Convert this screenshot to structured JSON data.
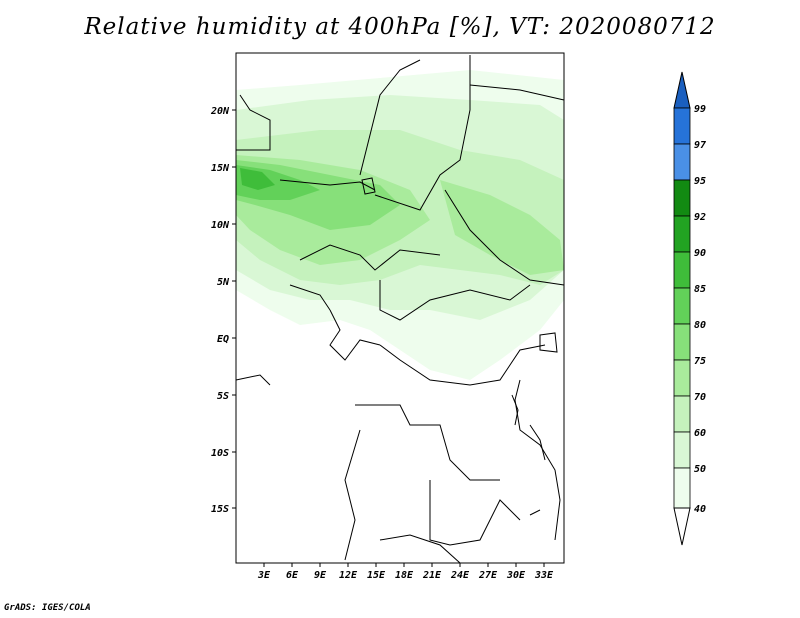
{
  "title": "Relative humidity at 400hPa [%], VT: 2020080712",
  "credit": "GrADS: IGES/COLA",
  "map": {
    "lat_labels": [
      "20N",
      "15N",
      "10N",
      "5N",
      "EQ",
      "5S",
      "10S",
      "15S"
    ],
    "lon_labels": [
      "3E",
      "6E",
      "9E",
      "12E",
      "15E",
      "18E",
      "21E",
      "24E",
      "27E",
      "30E",
      "33E"
    ]
  },
  "colorbar": {
    "levels": [
      "99",
      "97",
      "95",
      "92",
      "90",
      "85",
      "80",
      "75",
      "70",
      "60",
      "50",
      "40"
    ],
    "colors": {
      "c40_50": "#eefded",
      "c50_60": "#d9f7d5",
      "c60_70": "#c5f2bd",
      "c70_75": "#a9eb9c",
      "c75_80": "#87e07a",
      "c80_85": "#62d159",
      "c85_90": "#3fbd3a",
      "c90_92": "#22a322",
      "c92_95": "#128a12",
      "c95_97": "#4a90e6",
      "c97_99": "#2673d9",
      "c99_up": "#1a5fbf"
    }
  }
}
